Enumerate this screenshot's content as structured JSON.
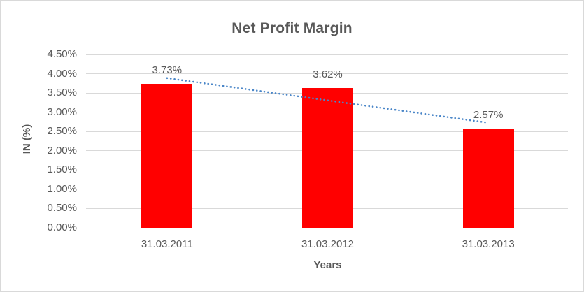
{
  "chart_data": {
    "type": "bar",
    "title": "Net Profit Margin",
    "xlabel": "Years",
    "ylabel": "IN (%)",
    "categories": [
      "31.03.2011",
      "31.03.2012",
      "31.03.2013"
    ],
    "values": [
      3.73,
      3.62,
      2.57
    ],
    "data_labels": [
      "3.73%",
      "3.62%",
      "2.57%"
    ],
    "ylim": [
      0,
      4.5
    ],
    "ytick_step": 0.5,
    "ytick_labels": [
      "0.00%",
      "0.50%",
      "1.00%",
      "1.50%",
      "2.00%",
      "2.50%",
      "3.00%",
      "3.50%",
      "4.00%",
      "4.50%"
    ],
    "grid": true,
    "legend_position": "none",
    "trendline": {
      "type": "linear",
      "style": "dotted"
    },
    "colors": {
      "bar": "#ff0000",
      "trendline": "#4a86c8",
      "title_text": "#595959",
      "axis_text": "#595959",
      "gridline": "#d9d9d9",
      "axis_line": "#bfbfbf",
      "background": "#ffffff",
      "border": "#d9d9d9"
    }
  }
}
